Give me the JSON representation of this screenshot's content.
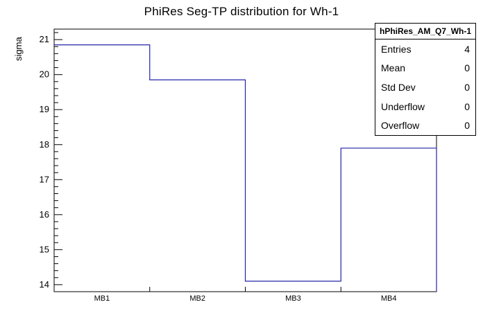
{
  "title": "PhiRes Seg-TP distribution for Wh-1",
  "chart_data": {
    "type": "bar",
    "subtype": "step-histogram",
    "title": "PhiRes Seg-TP distribution for Wh-1",
    "categories": [
      "MB1",
      "MB2",
      "MB3",
      "MB4"
    ],
    "values": [
      20.85,
      19.85,
      14.1,
      17.9
    ],
    "xlabel": "",
    "ylabel": "sigma",
    "ylim": [
      13.8,
      21.3
    ],
    "yticks": [
      14,
      15,
      16,
      17,
      18,
      19,
      20,
      21
    ],
    "minor_tick_step": 0.2,
    "grid": false,
    "legend": "none",
    "line_color": "#2222aa",
    "axis_color": "#000000"
  },
  "stats_box": {
    "header": "hPhiRes_AM_Q7_Wh-1",
    "rows": [
      {
        "label": "Entries",
        "value": "4"
      },
      {
        "label": "Mean",
        "value": "0"
      },
      {
        "label": "Std Dev",
        "value": "0"
      },
      {
        "label": "Underflow",
        "value": "0"
      },
      {
        "label": "Overflow",
        "value": "0"
      }
    ]
  }
}
